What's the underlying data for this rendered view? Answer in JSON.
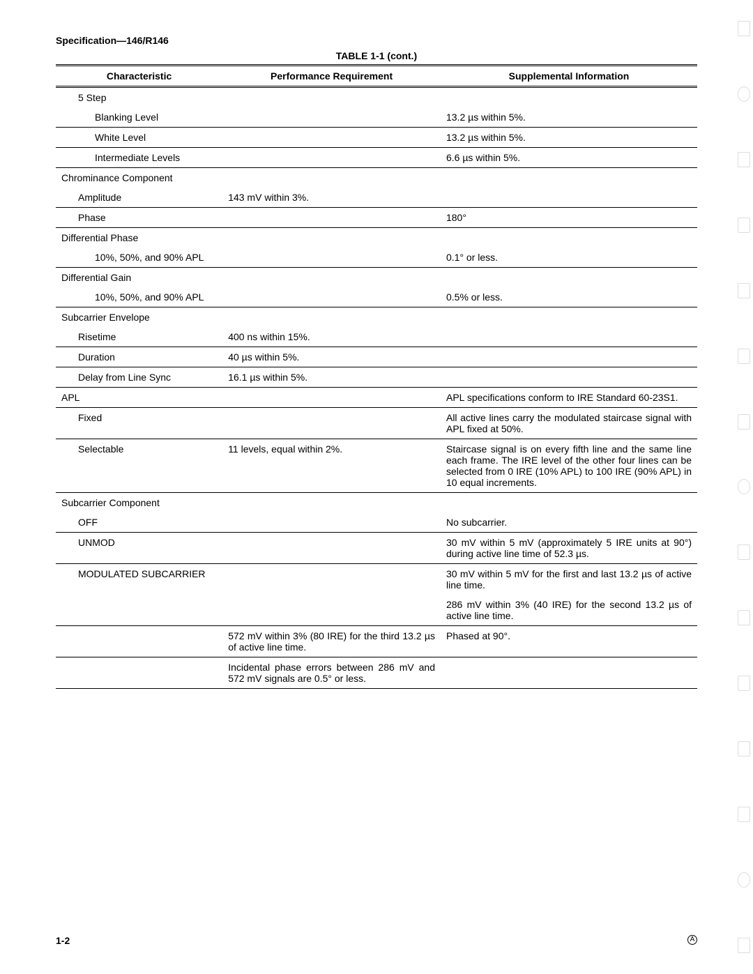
{
  "header": {
    "spec_title": "Specification—146/R146"
  },
  "caption": "TABLE 1-1 (cont.)",
  "columns": {
    "col1": "Characteristic",
    "col2": "Performance Requirement",
    "col3": "Supplemental Information"
  },
  "rows": {
    "five_step": "5 Step",
    "blanking_level": "Blanking Level",
    "blanking_level_supp": "13.2 µs within 5%.",
    "white_level": "White Level",
    "white_level_supp": "13.2 µs within 5%.",
    "intermediate_levels": "Intermediate Levels",
    "intermediate_levels_supp": "6.6 µs within 5%.",
    "chrom_comp": "Chrominance Component",
    "amplitude": "Amplitude",
    "amplitude_perf": "143 mV within 3%.",
    "phase": "Phase",
    "phase_supp": "180°",
    "diff_phase": "Differential Phase",
    "diff_phase_sub": "10%, 50%, and 90% APL",
    "diff_phase_supp": "0.1° or less.",
    "diff_gain": "Differential Gain",
    "diff_gain_sub": "10%, 50%, and 90% APL",
    "diff_gain_supp": "0.5% or less.",
    "subcar_env": "Subcarrier Envelope",
    "risetime": "Risetime",
    "risetime_perf": "400 ns within 15%.",
    "duration": "Duration",
    "duration_perf": "40 µs within 5%.",
    "delay_sync": "Delay from Line Sync",
    "delay_sync_perf": "16.1 µs within 5%.",
    "apl": "APL",
    "apl_supp": "APL specifications conform to IRE Standard 60-23S1.",
    "fixed": "Fixed",
    "fixed_supp": "All active lines carry the modulated staircase signal with APL fixed at 50%.",
    "selectable": "Selectable",
    "selectable_perf": "11 levels, equal within 2%.",
    "selectable_supp": "Staircase signal is on every fifth line and the same line each frame. The IRE level of the other four lines can be selected from 0 IRE (10% APL) to 100 IRE (90% APL) in 10 equal increments.",
    "subcar_comp": "Subcarrier Component",
    "off": "OFF",
    "off_supp": "No subcarrier.",
    "unmod": "UNMOD",
    "unmod_supp": "30 mV within 5 mV (approximately 5 IRE units at 90°) during active line time of 52.3 µs.",
    "mod_sub": "MODULATED SUBCARRIER",
    "mod_sub_supp1": "30 mV within 5 mV for the first and last 13.2 µs of active line time.",
    "mod_sub_supp2": "286 mV within 3% (40 IRE) for the second 13.2 µs of active line time.",
    "mod_sub_perf1": "572 mV within 3% (80 IRE) for the third 13.2 µs of active line time.",
    "mod_sub_supp3": "Phased at 90°.",
    "mod_sub_perf2": "Incidental phase errors between 286 mV and 572 mV signals are 0.5° or less."
  },
  "footer": {
    "page_num": "1-2",
    "rev": "A"
  }
}
